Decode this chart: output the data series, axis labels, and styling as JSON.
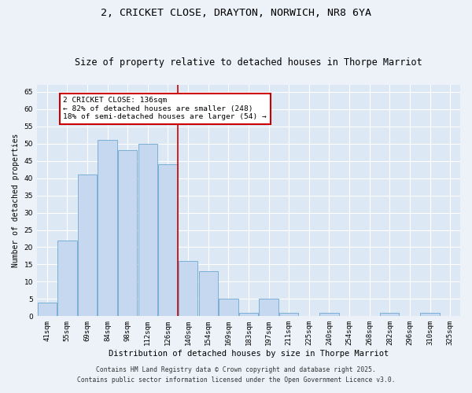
{
  "title1": "2, CRICKET CLOSE, DRAYTON, NORWICH, NR8 6YA",
  "title2": "Size of property relative to detached houses in Thorpe Marriot",
  "xlabel": "Distribution of detached houses by size in Thorpe Marriot",
  "ylabel": "Number of detached properties",
  "categories": [
    "41sqm",
    "55sqm",
    "69sqm",
    "84sqm",
    "98sqm",
    "112sqm",
    "126sqm",
    "140sqm",
    "154sqm",
    "169sqm",
    "183sqm",
    "197sqm",
    "211sqm",
    "225sqm",
    "240sqm",
    "254sqm",
    "268sqm",
    "282sqm",
    "296sqm",
    "310sqm",
    "325sqm"
  ],
  "values": [
    4,
    22,
    41,
    51,
    48,
    50,
    44,
    16,
    13,
    5,
    1,
    5,
    1,
    0,
    1,
    0,
    0,
    1,
    0,
    1,
    0
  ],
  "bar_color": "#c5d8f0",
  "bar_edge_color": "#7aafd4",
  "vline_color": "#cc0000",
  "annotation_text": "2 CRICKET CLOSE: 136sqm\n← 82% of detached houses are smaller (248)\n18% of semi-detached houses are larger (54) →",
  "annotation_box_color": "#ffffff",
  "annotation_box_edge": "#cc0000",
  "ylim": [
    0,
    67
  ],
  "yticks": [
    0,
    5,
    10,
    15,
    20,
    25,
    30,
    35,
    40,
    45,
    50,
    55,
    60,
    65
  ],
  "bg_color": "#dde8f5",
  "fig_bg_color": "#edf2f9",
  "footer1": "Contains HM Land Registry data © Crown copyright and database right 2025.",
  "footer2": "Contains public sector information licensed under the Open Government Licence v3.0.",
  "title1_fontsize": 9.5,
  "title2_fontsize": 8.5,
  "xlabel_fontsize": 7.5,
  "ylabel_fontsize": 7,
  "tick_fontsize": 6.5,
  "ann_fontsize": 6.8,
  "footer_fontsize": 5.8
}
